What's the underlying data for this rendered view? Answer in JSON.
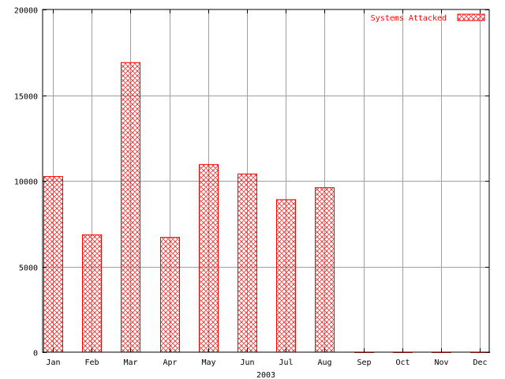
{
  "chart_data": {
    "type": "bar",
    "title": "",
    "xlabel": "2003",
    "ylabel": "",
    "categories": [
      "Jan",
      "Feb",
      "Mar",
      "Apr",
      "May",
      "Jun",
      "Jul",
      "Aug",
      "Sep",
      "Oct",
      "Nov",
      "Dec"
    ],
    "series": [
      {
        "name": "Systems Attacked",
        "values": [
          10250,
          6850,
          16900,
          6700,
          10950,
          10400,
          8900,
          9600,
          0,
          0,
          0,
          0
        ]
      }
    ],
    "ylim": [
      0,
      20000
    ],
    "yticks": [
      0,
      5000,
      10000,
      15000,
      20000
    ],
    "grid": true,
    "legend_position": "top-right",
    "colors": {
      "bar": "#ff0000",
      "grid": "#a0a0a0",
      "axis": "#000000",
      "text": "#000000",
      "legend_text": "#ff0000"
    }
  }
}
